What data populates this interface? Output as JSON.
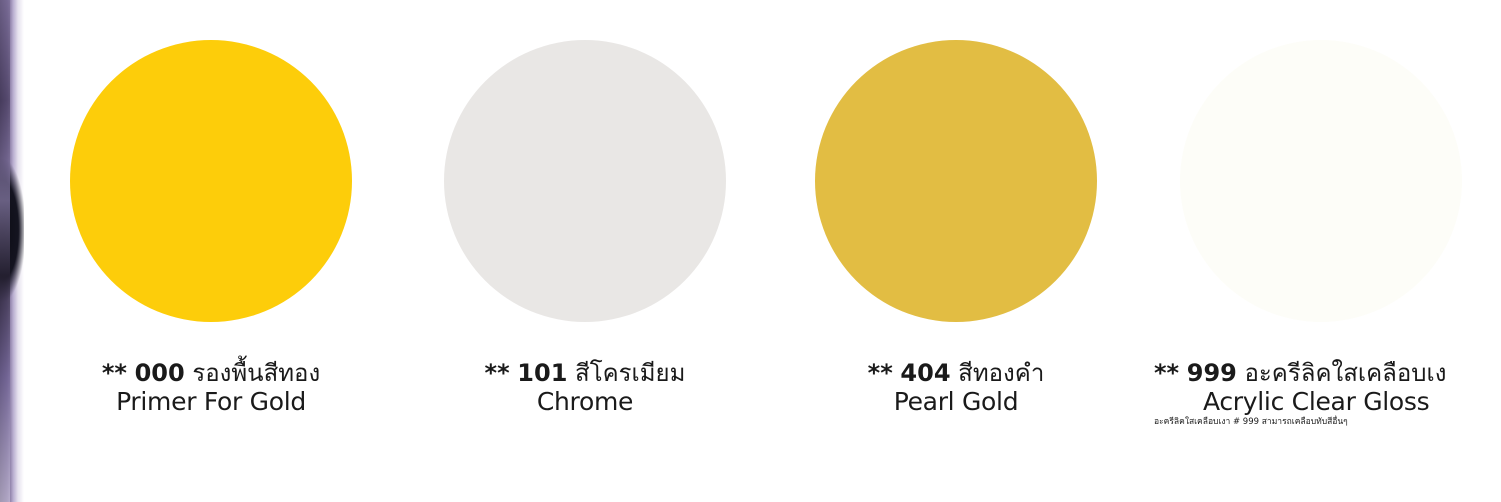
{
  "swatches": [
    {
      "stars": "**",
      "code": "000",
      "thai_name": "รองพื้นสีทอง",
      "english_name": "Primer For Gold",
      "color": "#fdcd0a"
    },
    {
      "stars": "**",
      "code": "101",
      "thai_name": "สีโครเมียม",
      "english_name": "Chrome",
      "color": "#e9e7e5"
    },
    {
      "stars": "**",
      "code": "404",
      "thai_name": "สีทองคำ",
      "english_name": "Pearl Gold",
      "color": "#e2bd43"
    },
    {
      "stars": "**",
      "code": "999",
      "thai_name": "อะครีลิคใสเคลือบเง",
      "english_name": "Acrylic Clear Gloss",
      "note": "อะครีลิคใสเคลือบเงา # 999 สามารถเคลือบทับสีอื่นๆ",
      "color": "#fdfdf8"
    }
  ]
}
